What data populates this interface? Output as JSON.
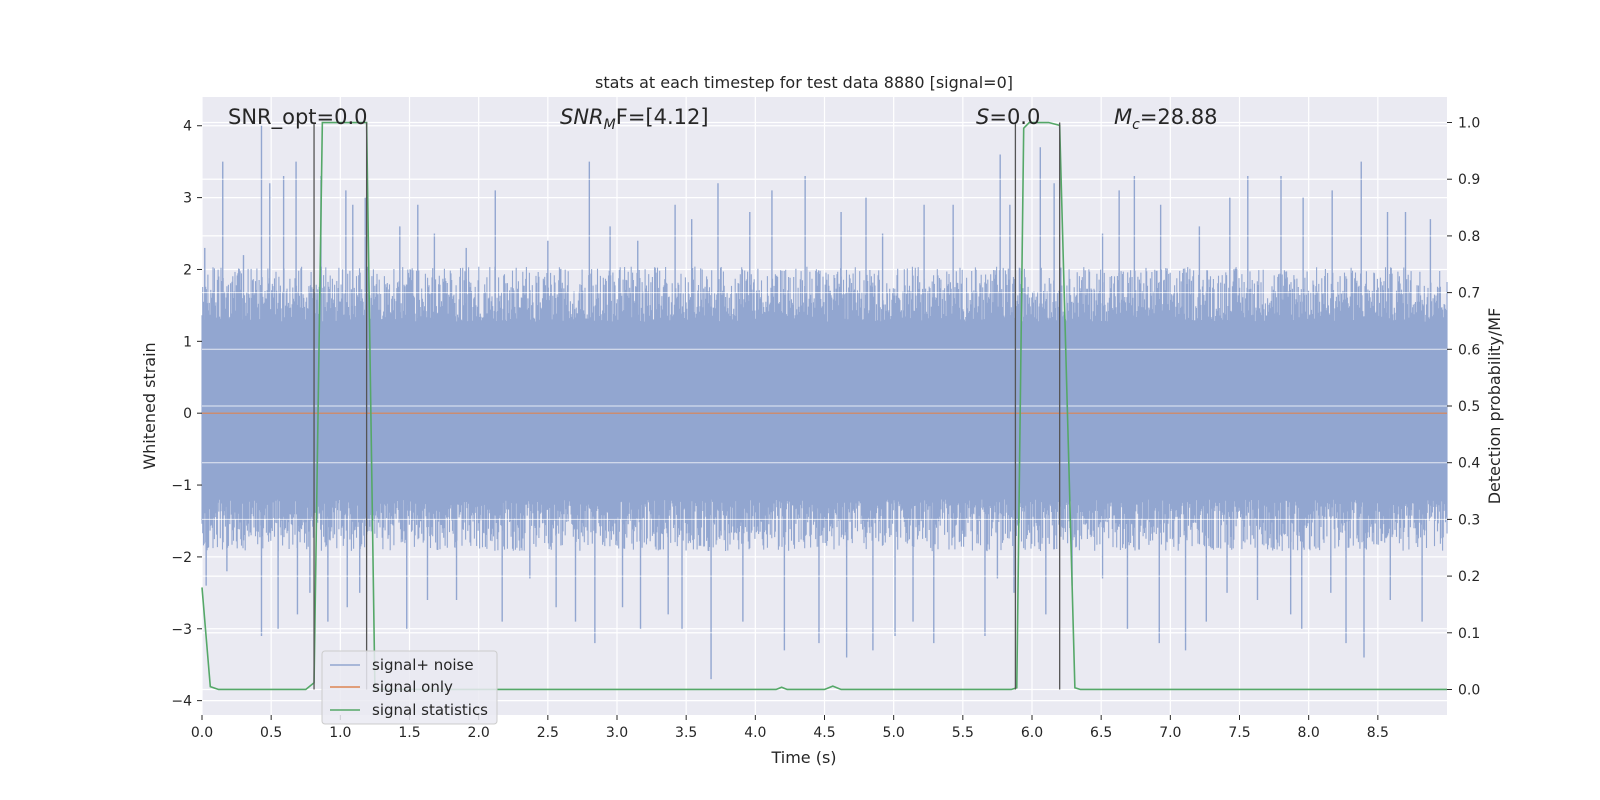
{
  "chart_data": {
    "type": "line",
    "title": "stats at each timestep for test data 8880 [signal=0]",
    "xlabel": "Time (s)",
    "ylabel": "Whitened strain",
    "ylabel_right": "Detection probability/MF",
    "xlim": [
      0.0,
      9.0
    ],
    "ylim": [
      -4.2,
      4.4
    ],
    "ylim_right": [
      -0.045,
      1.045
    ],
    "x_ticks": [
      0.0,
      0.5,
      1.0,
      1.5,
      2.0,
      2.5,
      3.0,
      3.5,
      4.0,
      4.5,
      5.0,
      5.5,
      6.0,
      6.5,
      7.0,
      7.5,
      8.0,
      8.5
    ],
    "x_tick_labels": [
      "0.0",
      "0.5",
      "1.0",
      "1.5",
      "2.0",
      "2.5",
      "3.0",
      "3.5",
      "4.0",
      "4.5",
      "5.0",
      "5.5",
      "6.0",
      "6.5",
      "7.0",
      "7.5",
      "8.0",
      "8.5"
    ],
    "y_ticks": [
      -4,
      -3,
      -2,
      -1,
      0,
      1,
      2,
      3,
      4
    ],
    "y_tick_labels": [
      "−4",
      "−3",
      "−2",
      "−1",
      "0",
      "1",
      "2",
      "3",
      "4"
    ],
    "y_ticks_right": [
      0.0,
      0.1,
      0.2,
      0.3,
      0.4,
      0.5,
      0.6,
      0.7,
      0.8,
      0.9,
      1.0
    ],
    "y_tick_labels_right": [
      "0.0",
      "0.1",
      "0.2",
      "0.3",
      "0.4",
      "0.5",
      "0.6",
      "0.7",
      "0.8",
      "0.9",
      "1.0"
    ],
    "grid": true,
    "legend_position": "lower-left",
    "annotations": {
      "snr_opt": "SNR_opt=0.0",
      "snr_mf_prefix": "SNR",
      "snr_mf_sub": "M",
      "snr_mf_rest": "F=[4.12]",
      "s_prefix": "S",
      "s_rest": "=0.0",
      "mc_prefix": "M",
      "mc_sub": "c",
      "mc_rest": "=28.88"
    },
    "vertical_markers_x": [
      0.81,
      1.19,
      5.88,
      6.2
    ],
    "series": [
      {
        "name": "signal+ noise",
        "color": "#92a6d0",
        "axis": "left",
        "style": "noise",
        "envelope": {
          "typical_low": -1.6,
          "typical_high": 1.7
        },
        "peaks": [
          [
            0.02,
            2.3
          ],
          [
            0.15,
            3.5
          ],
          [
            0.3,
            2.2
          ],
          [
            0.43,
            4.0
          ],
          [
            0.49,
            3.2
          ],
          [
            0.59,
            3.3
          ],
          [
            0.68,
            3.5
          ],
          [
            0.86,
            3.3
          ],
          [
            1.04,
            3.1
          ],
          [
            1.09,
            2.9
          ],
          [
            1.18,
            3.0
          ],
          [
            1.43,
            2.6
          ],
          [
            1.56,
            2.9
          ],
          [
            1.68,
            2.5
          ],
          [
            1.91,
            2.3
          ],
          [
            2.12,
            3.1
          ],
          [
            2.5,
            2.4
          ],
          [
            2.8,
            3.5
          ],
          [
            2.95,
            2.6
          ],
          [
            3.15,
            2.4
          ],
          [
            3.42,
            2.9
          ],
          [
            3.54,
            2.7
          ],
          [
            3.73,
            3.2
          ],
          [
            3.96,
            2.8
          ],
          [
            4.12,
            3.1
          ],
          [
            4.36,
            3.3
          ],
          [
            4.62,
            2.8
          ],
          [
            4.8,
            3.0
          ],
          [
            4.92,
            2.5
          ],
          [
            5.22,
            2.9
          ],
          [
            5.43,
            2.9
          ],
          [
            5.77,
            3.6
          ],
          [
            5.84,
            2.9
          ],
          [
            6.06,
            3.7
          ],
          [
            6.16,
            3.2
          ],
          [
            6.51,
            2.5
          ],
          [
            6.63,
            3.1
          ],
          [
            6.74,
            3.3
          ],
          [
            6.93,
            2.9
          ],
          [
            7.21,
            2.6
          ],
          [
            7.43,
            3.0
          ],
          [
            7.56,
            3.3
          ],
          [
            7.8,
            3.3
          ],
          [
            7.96,
            3.0
          ],
          [
            8.17,
            3.1
          ],
          [
            8.38,
            3.5
          ],
          [
            8.57,
            2.8
          ],
          [
            8.7,
            2.8
          ],
          [
            8.88,
            2.7
          ]
        ],
        "troughs": [
          [
            0.03,
            -2.4
          ],
          [
            0.18,
            -2.2
          ],
          [
            0.43,
            -3.1
          ],
          [
            0.55,
            -3.0
          ],
          [
            0.69,
            -2.8
          ],
          [
            0.78,
            -2.5
          ],
          [
            0.91,
            -2.9
          ],
          [
            1.05,
            -2.7
          ],
          [
            1.14,
            -2.5
          ],
          [
            1.48,
            -3.0
          ],
          [
            1.63,
            -2.6
          ],
          [
            1.84,
            -2.6
          ],
          [
            2.17,
            -2.9
          ],
          [
            2.37,
            -2.3
          ],
          [
            2.56,
            -2.7
          ],
          [
            2.7,
            -2.9
          ],
          [
            2.84,
            -3.2
          ],
          [
            3.04,
            -2.7
          ],
          [
            3.17,
            -3.0
          ],
          [
            3.37,
            -2.8
          ],
          [
            3.47,
            -3.0
          ],
          [
            3.68,
            -3.7
          ],
          [
            3.91,
            -2.9
          ],
          [
            4.21,
            -3.3
          ],
          [
            4.46,
            -3.2
          ],
          [
            4.66,
            -3.4
          ],
          [
            4.85,
            -3.3
          ],
          [
            5.01,
            -3.1
          ],
          [
            5.14,
            -2.9
          ],
          [
            5.29,
            -3.2
          ],
          [
            5.66,
            -3.1
          ],
          [
            5.75,
            -2.3
          ],
          [
            5.87,
            -2.5
          ],
          [
            6.1,
            -2.8
          ],
          [
            6.29,
            -2.4
          ],
          [
            6.51,
            -2.3
          ],
          [
            6.69,
            -3.0
          ],
          [
            6.92,
            -3.2
          ],
          [
            7.11,
            -3.3
          ],
          [
            7.26,
            -2.9
          ],
          [
            7.41,
            -2.5
          ],
          [
            7.63,
            -2.6
          ],
          [
            7.87,
            -2.8
          ],
          [
            7.95,
            -3.0
          ],
          [
            8.16,
            -2.5
          ],
          [
            8.27,
            -3.2
          ],
          [
            8.4,
            -3.4
          ],
          [
            8.59,
            -2.6
          ],
          [
            8.82,
            -2.9
          ]
        ]
      },
      {
        "name": "signal only",
        "color": "#dd8452",
        "axis": "left",
        "x": [
          0.0,
          9.0
        ],
        "y": [
          0.0,
          0.0
        ]
      },
      {
        "name": "signal statistics",
        "color": "#55a868",
        "axis": "right",
        "x": [
          0.0,
          0.06,
          0.12,
          0.75,
          0.81,
          0.87,
          0.92,
          1.12,
          1.19,
          1.25,
          4.15,
          4.19,
          4.23,
          4.5,
          4.56,
          4.62,
          5.85,
          5.89,
          5.94,
          5.98,
          6.12,
          6.2,
          6.31,
          6.35,
          9.0
        ],
        "y": [
          0.18,
          0.005,
          0.0,
          0.0,
          0.012,
          1.0,
          1.0,
          1.0,
          1.0,
          0.0,
          0.0,
          0.004,
          0.0,
          0.0,
          0.006,
          0.0,
          0.0,
          0.003,
          0.99,
          1.0,
          1.0,
          0.995,
          0.003,
          0.0,
          0.0
        ]
      }
    ]
  }
}
